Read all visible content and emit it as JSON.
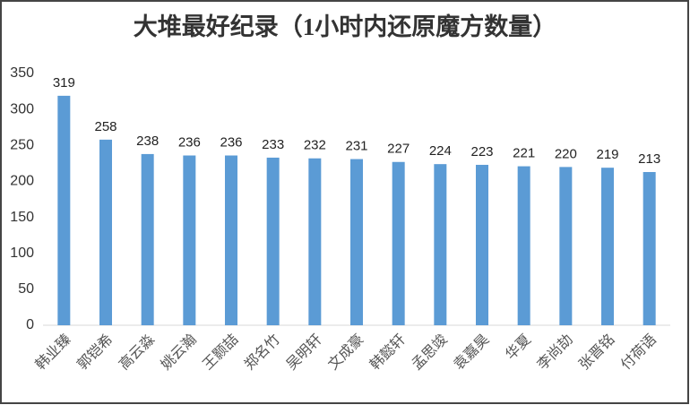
{
  "chart_data": {
    "type": "bar",
    "title": "大堆最好纪录（1小时内还原魔方数量）",
    "categories": [
      "韩业臻",
      "郭铠希",
      "高云淼",
      "姚云瀚",
      "王颢喆",
      "郑名竹",
      "吴明轩",
      "文成豪",
      "韩懿轩",
      "孟思竣",
      "袁嘉昊",
      "华夏",
      "李尚劼",
      "张晋铭",
      "付荷语"
    ],
    "values": [
      319,
      258,
      238,
      236,
      236,
      233,
      232,
      231,
      227,
      224,
      223,
      221,
      220,
      219,
      213
    ],
    "color": "#5b9bd5",
    "ylim": [
      0,
      350
    ],
    "yticks": [
      0,
      50,
      100,
      150,
      200,
      250,
      300,
      350
    ],
    "grid": false
  }
}
